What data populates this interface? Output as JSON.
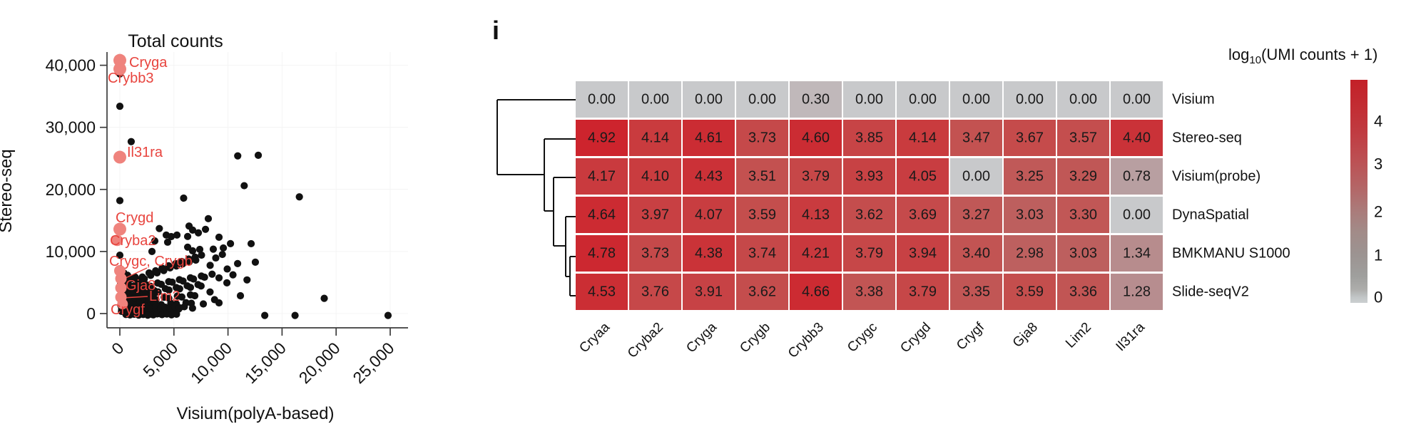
{
  "panel_label": "i",
  "chart_data": [
    {
      "type": "scatter",
      "title": "Total counts",
      "xlabel": "Visium(polyA-based)",
      "ylabel": "Stereo-seq",
      "x_tick_labels": [
        "0",
        "5,000",
        "10,000",
        "15,000",
        "20,000",
        "25,000"
      ],
      "x_tick_values": [
        0,
        5000,
        10000,
        15000,
        20000,
        25000
      ],
      "y_tick_labels": [
        "0",
        "10,000",
        "20,000",
        "30,000",
        "40,000"
      ],
      "y_tick_values": [
        0,
        10000,
        20000,
        30000,
        40000
      ],
      "xlim": [
        0,
        26000
      ],
      "ylim": [
        0,
        42000
      ],
      "point_color": "#111111",
      "highlight_point_color": "#ef837d",
      "highlight_label_color": "#e8443e",
      "highlighted_points": [
        {
          "gene": "Cryga",
          "x": 0,
          "y": 40800
        },
        {
          "gene": "Crybb3",
          "x": 0,
          "y": 39400
        },
        {
          "gene": "Il31ra",
          "x": 0,
          "y": 25200
        },
        {
          "gene": "Crygd",
          "x": 0,
          "y": 13600
        },
        {
          "gene": "Cryba2",
          "x": -250,
          "y": 11800
        },
        {
          "gene": "Crygc",
          "x": 0,
          "y": 6900
        },
        {
          "gene": "Crygb",
          "x": 100,
          "y": 5630
        },
        {
          "gene": "Gja8",
          "x": 100,
          "y": 4140
        },
        {
          "gene": "Lim2",
          "x": 100,
          "y": 2640
        },
        {
          "gene": "Crygf",
          "x": 250,
          "y": 1550
        }
      ],
      "annotation_labels": [
        "Cryga",
        "Crybb3",
        "Il31ra",
        "Crygd",
        "Cryba2",
        "Crygc, Crygb",
        "Gja8",
        "Lim2",
        "Crygf"
      ],
      "points": [
        [
          0,
          38600
        ],
        [
          0,
          33400
        ],
        [
          1050,
          27700
        ],
        [
          0,
          18200
        ],
        [
          0,
          9400
        ],
        [
          10900,
          25400
        ],
        [
          12800,
          25500
        ],
        [
          11500,
          20600
        ],
        [
          5900,
          18600
        ],
        [
          16600,
          18800
        ],
        [
          18900,
          2450
        ],
        [
          13400,
          -300
        ],
        [
          16200,
          -300
        ],
        [
          24800,
          -300
        ],
        [
          3650,
          13700
        ],
        [
          6400,
          14100
        ],
        [
          6730,
          13450
        ],
        [
          7260,
          13000
        ],
        [
          7920,
          13570
        ],
        [
          8180,
          15290
        ],
        [
          4290,
          12650
        ],
        [
          4750,
          12400
        ],
        [
          5280,
          12650
        ],
        [
          3230,
          11700
        ],
        [
          4420,
          11500
        ],
        [
          9170,
          12300
        ],
        [
          10230,
          11270
        ],
        [
          2970,
          10000
        ],
        [
          6270,
          10700
        ],
        [
          6730,
          10100
        ],
        [
          7390,
          10340
        ],
        [
          6270,
          12420
        ],
        [
          9570,
          10570
        ],
        [
          10890,
          8050
        ],
        [
          12140,
          11260
        ],
        [
          12530,
          8280
        ],
        [
          9170,
          5750
        ],
        [
          9900,
          4950
        ],
        [
          11150,
          2870
        ],
        [
          9170,
          1720
        ],
        [
          4950,
          800
        ],
        [
          3100,
          -200
        ],
        [
          1620,
          5340
        ],
        [
          2080,
          5890
        ],
        [
          2260,
          5580
        ],
        [
          2705,
          6540
        ],
        [
          2850,
          6160
        ],
        [
          3310,
          6890
        ],
        [
          3440,
          6560
        ],
        [
          3910,
          7310
        ],
        [
          4060,
          6930
        ],
        [
          4510,
          7690
        ],
        [
          4640,
          7360
        ],
        [
          5160,
          8040
        ],
        [
          5230,
          7660
        ],
        [
          5740,
          8390
        ],
        [
          5810,
          8010
        ],
        [
          6370,
          8790
        ],
        [
          6410,
          8310
        ],
        [
          6960,
          9090
        ],
        [
          7020,
          8610
        ],
        [
          7550,
          9410
        ],
        [
          1830,
          4460
        ],
        [
          2490,
          4610
        ],
        [
          2840,
          4390
        ],
        [
          3490,
          4920
        ],
        [
          3830,
          4710
        ],
        [
          4520,
          5140
        ],
        [
          4840,
          5060
        ],
        [
          5510,
          5460
        ],
        [
          5840,
          5240
        ],
        [
          6530,
          5760
        ],
        [
          6810,
          5570
        ],
        [
          7540,
          6040
        ],
        [
          7830,
          5860
        ],
        [
          8530,
          6340
        ],
        [
          1560,
          3340
        ],
        [
          2170,
          3430
        ],
        [
          2550,
          3170
        ],
        [
          3190,
          3710
        ],
        [
          3540,
          3490
        ],
        [
          4210,
          4010
        ],
        [
          4540,
          3790
        ],
        [
          5220,
          4190
        ],
        [
          5530,
          3990
        ],
        [
          6230,
          4470
        ],
        [
          6530,
          4210
        ],
        [
          7230,
          4660
        ],
        [
          7510,
          4440
        ],
        [
          2140,
          2430
        ],
        [
          2880,
          2460
        ],
        [
          3340,
          2240
        ],
        [
          4100,
          2630
        ],
        [
          4530,
          2460
        ],
        [
          5320,
          2830
        ],
        [
          5730,
          2670
        ],
        [
          6530,
          3010
        ],
        [
          6930,
          2870
        ],
        [
          2450,
          1610
        ],
        [
          3290,
          1550
        ],
        [
          3830,
          1440
        ],
        [
          4710,
          1660
        ],
        [
          5230,
          1550
        ],
        [
          6120,
          1750
        ],
        [
          6610,
          1670
        ],
        [
          2950,
          810
        ],
        [
          4300,
          770
        ],
        [
          5430,
          710
        ],
        [
          6720,
          870
        ],
        [
          7720,
          1550
        ],
        [
          8340,
          3480
        ],
        [
          8760,
          2240
        ],
        [
          8350,
          7760
        ],
        [
          8870,
          8960
        ],
        [
          9480,
          9520
        ],
        [
          8640,
          10380
        ],
        [
          9930,
          7180
        ],
        [
          10460,
          6240
        ],
        [
          11760,
          5420
        ],
        [
          220,
          950
        ],
        [
          480,
          1430
        ],
        [
          700,
          1090
        ],
        [
          930,
          1820
        ],
        [
          1080,
          1490
        ],
        [
          1310,
          2240
        ],
        [
          1490,
          1930
        ],
        [
          1720,
          2590
        ],
        [
          1910,
          2310
        ],
        [
          2120,
          2980
        ],
        [
          380,
          2140
        ],
        [
          610,
          2570
        ],
        [
          790,
          2290
        ],
        [
          1010,
          2960
        ],
        [
          1230,
          2690
        ],
        [
          1390,
          3380
        ],
        [
          1610,
          3120
        ],
        [
          1790,
          3790
        ],
        [
          2010,
          3520
        ],
        [
          2230,
          4160
        ],
        [
          340,
          3230
        ],
        [
          560,
          3680
        ],
        [
          740,
          3410
        ],
        [
          960,
          4080
        ],
        [
          1170,
          3820
        ],
        [
          1360,
          4480
        ],
        [
          1540,
          4230
        ],
        [
          1760,
          4880
        ],
        [
          1940,
          4590
        ],
        [
          590,
          520
        ],
        [
          880,
          710
        ],
        [
          1210,
          480
        ],
        [
          1520,
          790
        ],
        [
          1790,
          610
        ],
        [
          2080,
          890
        ],
        [
          2410,
          720
        ],
        [
          2690,
          1080
        ],
        [
          310,
          4370
        ],
        [
          520,
          4910
        ],
        [
          790,
          5280
        ],
        [
          1090,
          5590
        ],
        [
          1410,
          5880
        ],
        [
          260,
          1980
        ],
        [
          440,
          1030
        ],
        [
          660,
          1580
        ],
        [
          840,
          930
        ],
        [
          1060,
          590
        ],
        [
          2490,
          1990
        ],
        [
          2790,
          3290
        ],
        [
          3080,
          2520
        ],
        [
          510,
          5620
        ],
        [
          240,
          5230
        ],
        [
          710,
          6180
        ],
        [
          360,
          6560
        ],
        [
          150,
          350
        ],
        [
          400,
          300
        ],
        [
          900,
          250
        ],
        [
          1400,
          200
        ],
        [
          1900,
          350
        ],
        [
          2400,
          300
        ],
        [
          170,
          700
        ],
        [
          300,
          1500
        ],
        [
          150,
          2600
        ],
        [
          200,
          3600
        ],
        [
          450,
          4300
        ],
        [
          1650,
          1200
        ],
        [
          2050,
          1600
        ],
        [
          2350,
          1100
        ],
        [
          1150,
          1000
        ],
        [
          1550,
          500
        ],
        [
          2650,
          450
        ],
        [
          2950,
          1350
        ],
        [
          3250,
          900
        ],
        [
          3550,
          1250
        ],
        [
          2750,
          1850
        ],
        [
          3150,
          1950
        ],
        [
          520,
          260
        ],
        [
          760,
          420
        ],
        [
          980,
          300
        ],
        [
          1240,
          520
        ],
        [
          1430,
          280
        ],
        [
          1680,
          450
        ],
        [
          1880,
          240
        ],
        [
          2140,
          480
        ],
        [
          2360,
          300
        ],
        [
          2620,
          520
        ],
        [
          2860,
          340
        ],
        [
          3120,
          560
        ],
        [
          3360,
          380
        ],
        [
          3640,
          600
        ],
        [
          3880,
          420
        ],
        [
          4160,
          640
        ],
        [
          4420,
          460
        ],
        [
          4700,
          680
        ],
        [
          560,
          -150
        ],
        [
          940,
          -220
        ],
        [
          1320,
          -120
        ],
        [
          1740,
          -240
        ],
        [
          2160,
          -140
        ],
        [
          2580,
          -260
        ],
        [
          3020,
          -160
        ],
        [
          3460,
          -60
        ],
        [
          3900,
          -180
        ],
        [
          4340,
          -80
        ],
        [
          4780,
          -200
        ],
        [
          5240,
          -100
        ],
        [
          680,
          800
        ],
        [
          1120,
          700
        ],
        [
          1560,
          900
        ],
        [
          2000,
          760
        ],
        [
          2440,
          940
        ],
        [
          2880,
          800
        ],
        [
          3320,
          980
        ],
        [
          3760,
          840
        ],
        [
          4200,
          1020
        ],
        [
          4640,
          880
        ],
        [
          5080,
          1060
        ],
        [
          5520,
          920
        ],
        [
          5960,
          1100
        ],
        [
          1060,
          1250
        ],
        [
          1460,
          1350
        ],
        [
          1860,
          1150
        ],
        [
          2260,
          1300
        ],
        [
          350,
          1800
        ],
        [
          650,
          2100
        ],
        [
          480,
          2700
        ],
        [
          780,
          3000
        ],
        [
          920,
          2100
        ],
        [
          1180,
          1700
        ],
        [
          1380,
          2500
        ],
        [
          1580,
          2900
        ],
        [
          1880,
          2000
        ],
        [
          2180,
          2600
        ],
        [
          2480,
          3000
        ],
        [
          2680,
          2300
        ],
        [
          420,
          3900
        ],
        [
          720,
          4100
        ],
        [
          1020,
          4400
        ],
        [
          1320,
          3600
        ],
        [
          1620,
          3900
        ],
        [
          1920,
          4200
        ],
        [
          2320,
          3800
        ],
        [
          2620,
          4100
        ],
        [
          2920,
          3700
        ],
        [
          3220,
          3300
        ],
        [
          80,
          2900
        ],
        [
          120,
          3800
        ],
        [
          60,
          4700
        ],
        [
          90,
          1300
        ]
      ]
    },
    {
      "type": "heatmap",
      "legend_title": {
        "pre": "log",
        "sub": "10",
        "post": "(UMI counts + 1)"
      },
      "columns": [
        "Cryaa",
        "Cryba2",
        "Cryga",
        "Crygb",
        "Crybb3",
        "Crygc",
        "Crygd",
        "Crygf",
        "Gja8",
        "Lim2",
        "Il31ra"
      ],
      "rows": [
        "Visium",
        "Stereo-seq",
        "Visium(probe)",
        "DynaSpatial",
        "BMKMANU S1000",
        "Slide-seqV2"
      ],
      "values": [
        [
          0.0,
          0.0,
          0.0,
          0.0,
          0.3,
          0.0,
          0.0,
          0.0,
          0.0,
          0.0,
          0.0
        ],
        [
          4.92,
          4.14,
          4.61,
          3.73,
          4.6,
          3.85,
          4.14,
          3.47,
          3.67,
          3.57,
          4.4
        ],
        [
          4.17,
          4.1,
          4.43,
          3.51,
          3.79,
          3.93,
          4.05,
          0.0,
          3.25,
          3.29,
          0.78
        ],
        [
          4.64,
          3.97,
          4.07,
          3.59,
          4.13,
          3.62,
          3.69,
          3.27,
          3.03,
          3.3,
          0.0
        ],
        [
          4.78,
          3.73,
          4.38,
          3.74,
          4.21,
          3.79,
          3.94,
          3.4,
          2.98,
          3.03,
          1.34
        ],
        [
          4.53,
          3.76,
          3.91,
          3.62,
          4.66,
          3.38,
          3.79,
          3.35,
          3.59,
          3.36,
          1.28
        ]
      ],
      "colorbar_tick_labels": [
        "4",
        "3",
        "2",
        "1",
        "0"
      ],
      "colorbar_tick_values": [
        4,
        3,
        2,
        1,
        0
      ],
      "color_low": "#c8c9cb",
      "color_high": "#cd222c"
    }
  ]
}
